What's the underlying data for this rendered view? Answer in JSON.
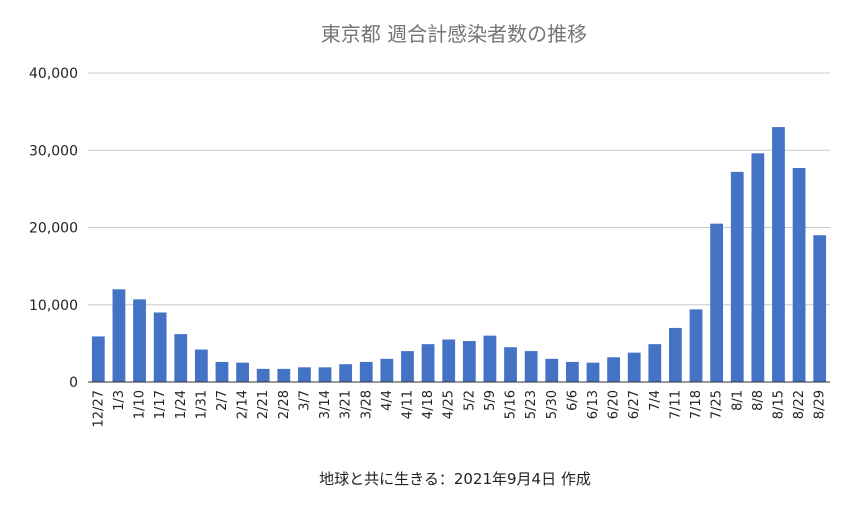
{
  "chart_data": {
    "type": "bar",
    "title": "東京都 週合計感染者数の推移",
    "xlabel": "地球と共に生きる：2021年9月4日 作成",
    "ylabel": "",
    "ylim": [
      0,
      40000
    ],
    "yticks": [
      0,
      10000,
      20000,
      30000,
      40000
    ],
    "ytick_labels": [
      "0",
      "10,000",
      "20,000",
      "30,000",
      "40,000"
    ],
    "grid": true,
    "bar_color": "#4472c4",
    "categories": [
      "12/27",
      "1/3",
      "1/10",
      "1/17",
      "1/24",
      "1/31",
      "2/7",
      "2/14",
      "2/21",
      "2/28",
      "3/7",
      "3/14",
      "3/21",
      "3/28",
      "4/4",
      "4/11",
      "4/18",
      "4/25",
      "5/2",
      "5/9",
      "5/16",
      "5/23",
      "5/30",
      "6/6",
      "6/13",
      "6/20",
      "6/27",
      "7/4",
      "7/11",
      "7/18",
      "7/25",
      "8/1",
      "8/8",
      "8/15",
      "8/22",
      "8/29"
    ],
    "values": [
      5900,
      12000,
      10700,
      9000,
      6200,
      4200,
      2600,
      2500,
      1700,
      1700,
      1900,
      1900,
      2300,
      2600,
      3000,
      4000,
      4900,
      5500,
      5300,
      6000,
      4500,
      4000,
      3000,
      2600,
      2500,
      3200,
      3800,
      4900,
      7000,
      9400,
      20500,
      27200,
      29600,
      33000,
      27700,
      19000
    ]
  }
}
